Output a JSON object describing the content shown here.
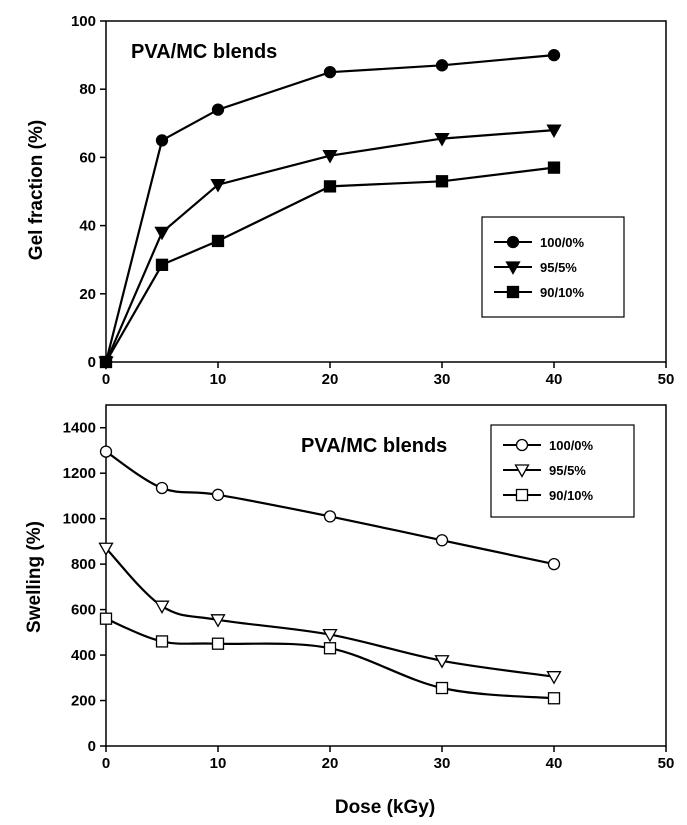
{
  "chart_data": [
    {
      "type": "line",
      "title": "PVA/MC blends",
      "xlabel": "",
      "ylabel": "Gel fraction (%)",
      "xlim": [
        0,
        50
      ],
      "ylim": [
        0,
        100
      ],
      "xticks": [
        "0",
        "10",
        "20",
        "30",
        "40",
        "50"
      ],
      "yticks": [
        "0",
        "20",
        "40",
        "60",
        "80",
        "100"
      ],
      "legend_position": "center-right",
      "grid": false,
      "x": [
        0,
        5,
        10,
        20,
        30,
        40
      ],
      "series": [
        {
          "name": "100/0%",
          "marker": "circle-filled",
          "values": [
            0,
            65,
            74,
            85,
            87,
            90
          ]
        },
        {
          "name": "95/5%",
          "marker": "triangle-down-filled",
          "values": [
            0,
            38,
            52,
            60.5,
            65.5,
            68
          ]
        },
        {
          "name": "90/10%",
          "marker": "square-filled",
          "values": [
            0,
            28.5,
            35.5,
            51.5,
            53,
            57
          ]
        }
      ]
    },
    {
      "type": "line",
      "title": "PVA/MC blends",
      "xlabel": "Dose (kGy)",
      "ylabel": "Swelling (%)",
      "xlim": [
        0,
        50
      ],
      "ylim": [
        0,
        1500
      ],
      "xticks": [
        "0",
        "10",
        "20",
        "30",
        "40",
        "50"
      ],
      "yticks": [
        "0",
        "200",
        "400",
        "600",
        "800",
        "1000",
        "1200",
        "1400"
      ],
      "legend_position": "top-right",
      "grid": false,
      "x": [
        0,
        5,
        10,
        20,
        30,
        40
      ],
      "series": [
        {
          "name": "100/0%",
          "marker": "circle-open",
          "values": [
            1295,
            1135,
            1105,
            1010,
            905,
            800
          ]
        },
        {
          "name": "95/5%",
          "marker": "triangle-down-open",
          "values": [
            870,
            615,
            555,
            490,
            375,
            305
          ]
        },
        {
          "name": "90/10%",
          "marker": "square-open",
          "values": [
            560,
            460,
            450,
            430,
            255,
            210
          ]
        }
      ]
    }
  ]
}
